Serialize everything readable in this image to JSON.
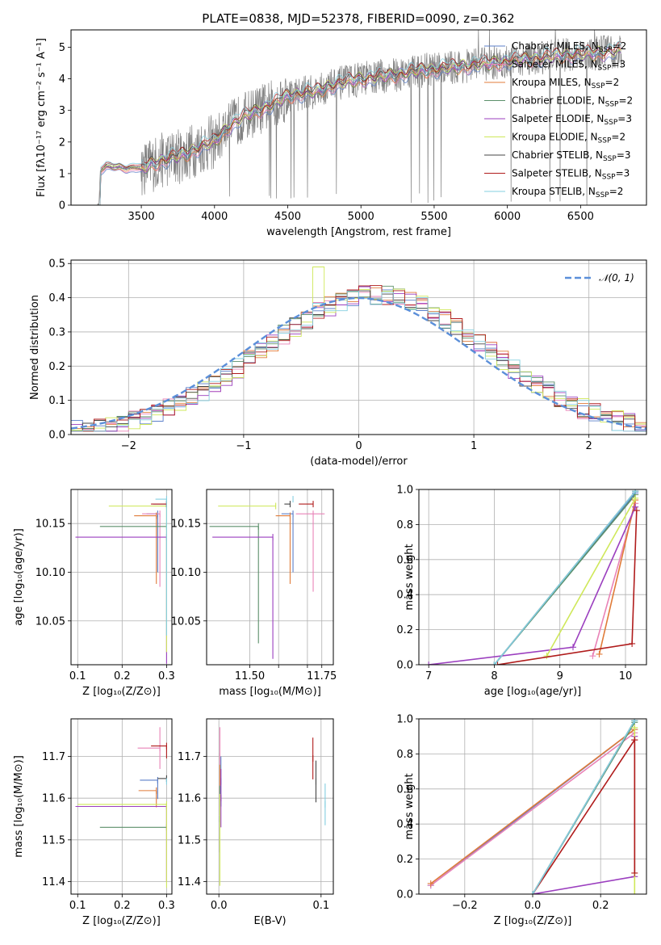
{
  "colors": {
    "chabrier_miles": "#5b7fc9",
    "salpeter_miles": "#e983b7",
    "kroupa_miles": "#e07b39",
    "chabrier_elodie": "#5b8f6a",
    "salpeter_elodie": "#9b3fbf",
    "kroupa_elodie": "#cfe85a",
    "chabrier_stelib": "#444444",
    "salpeter_stelib": "#b01c1c",
    "kroupa_stelib": "#83cfe0",
    "data": "#808080",
    "normal": "#5b8fd9",
    "grid": "#b0b0b0"
  },
  "legend_models": [
    {
      "key": "chabrier_miles",
      "label": "Chabrier MILES, N",
      "sub": "SSP",
      "n": "=2"
    },
    {
      "key": "salpeter_miles",
      "label": "Salpeter MILES, N",
      "sub": "SSP",
      "n": "=3"
    },
    {
      "key": "kroupa_miles",
      "label": "Kroupa MILES, N",
      "sub": "SSP",
      "n": "=2"
    },
    {
      "key": "chabrier_elodie",
      "label": "Chabrier ELODIE, N",
      "sub": "SSP",
      "n": "=2"
    },
    {
      "key": "salpeter_elodie",
      "label": "Salpeter ELODIE, N",
      "sub": "SSP",
      "n": "=3"
    },
    {
      "key": "kroupa_elodie",
      "label": "Kroupa ELODIE, N",
      "sub": "SSP",
      "n": "=2"
    },
    {
      "key": "chabrier_stelib",
      "label": "Chabrier STELIB, N",
      "sub": "SSP",
      "n": "=3"
    },
    {
      "key": "salpeter_stelib",
      "label": "Salpeter STELIB, N",
      "sub": "SSP",
      "n": "=3"
    },
    {
      "key": "kroupa_stelib",
      "label": "Kroupa STELIB, N",
      "sub": "SSP",
      "n": "=2"
    }
  ],
  "chart_data": [
    {
      "id": "spectrum",
      "type": "line",
      "title": "PLATE=0838, MJD=52378, FIBERID=0090, z=0.362",
      "xlabel": "wavelength [Angstrom, rest frame]",
      "ylabel": "Flux [fλ10⁻¹⁷ erg cm⁻² s⁻¹ A⁻¹]",
      "xlim": [
        3020,
        6950
      ],
      "ylim": [
        0,
        5.55
      ],
      "xticks": [
        3500,
        4000,
        4500,
        5000,
        5500,
        6000,
        6500
      ],
      "yticks": [
        0,
        1,
        2,
        3,
        4,
        5
      ],
      "continuum": {
        "x": [
          3200,
          3210,
          3220,
          3260,
          3300,
          3350,
          3400,
          3450,
          3500,
          3600,
          3700,
          3800,
          3900,
          4000,
          4100,
          4200,
          4300,
          4400,
          4500,
          4600,
          4700,
          4800,
          4900,
          5000,
          5200,
          5400,
          5600,
          5800,
          6000,
          6200,
          6400,
          6600,
          6780
        ],
        "y": [
          0,
          0,
          1.05,
          1.25,
          1.2,
          1.22,
          1.15,
          1.2,
          1.15,
          1.35,
          1.5,
          1.6,
          1.85,
          2.0,
          2.5,
          2.8,
          3.0,
          3.2,
          3.45,
          3.55,
          3.6,
          3.8,
          3.9,
          4.0,
          4.1,
          4.25,
          4.35,
          4.45,
          4.55,
          4.65,
          4.75,
          4.8,
          4.9
        ]
      }
    },
    {
      "id": "residuals",
      "type": "bar",
      "xlabel": "(data-model)/error",
      "ylabel": "Normed distribution",
      "xlim": [
        -2.5,
        2.5
      ],
      "ylim": [
        0,
        0.51
      ],
      "xticks": [
        -2,
        -1,
        0,
        1,
        2
      ],
      "yticks": [
        0.0,
        0.1,
        0.2,
        0.3,
        0.4,
        0.5
      ],
      "legend": "𝒩(0, 1)",
      "bin_width": 0.1,
      "bin_start": -2.5
    },
    {
      "id": "age_vs_Z",
      "type": "scatter",
      "xlabel": "Z [log₁₀(Z/Z⊙)]",
      "ylabel": "age  [log₁₀(age/yr)]",
      "xlim": [
        0.085,
        0.312
      ],
      "ylim": [
        10.005,
        10.185
      ],
      "xticks": [
        0.1,
        0.2,
        0.3
      ],
      "yticks": [
        10.05,
        10.1,
        10.15
      ],
      "points": [
        {
          "key": "chabrier_miles",
          "x": 0.28,
          "y": 10.16,
          "xerr": [
            0.025,
            0.0
          ],
          "yerr": [
            0.06,
            0.0
          ]
        },
        {
          "key": "salpeter_miles",
          "x": 0.285,
          "y": 10.16,
          "xerr": [
            0.04,
            0.0
          ],
          "yerr": [
            0.075,
            0.0
          ]
        },
        {
          "key": "kroupa_miles",
          "x": 0.277,
          "y": 10.158,
          "xerr": [
            0.05,
            0.0
          ],
          "yerr": [
            0.07,
            0.0
          ]
        },
        {
          "key": "chabrier_elodie",
          "x": 0.3,
          "y": 10.147,
          "xerr": [
            0.15,
            0.0
          ],
          "yerr": [
            0.0,
            0.0
          ]
        },
        {
          "key": "salpeter_elodie",
          "x": 0.3,
          "y": 10.136,
          "xerr": [
            0.205,
            0.0
          ],
          "yerr": [
            0.13,
            0.0
          ]
        },
        {
          "key": "kroupa_elodie",
          "x": 0.3,
          "y": 10.168,
          "xerr": [
            0.13,
            0.0
          ],
          "yerr": [
            0.15,
            0.0
          ]
        },
        {
          "key": "chabrier_stelib",
          "x": 0.3,
          "y": 10.17,
          "xerr": [
            0.03,
            0.0
          ],
          "yerr": [
            0.0,
            0.0
          ]
        },
        {
          "key": "salpeter_stelib",
          "x": 0.3,
          "y": 10.17,
          "xerr": [
            0.035,
            0.0
          ],
          "yerr": [
            0.0,
            0.0
          ]
        },
        {
          "key": "kroupa_stelib",
          "x": 0.3,
          "y": 10.175,
          "xerr": [
            0.025,
            0.0
          ],
          "yerr": [
            0.14,
            0.0
          ]
        }
      ]
    },
    {
      "id": "age_vs_mass",
      "type": "scatter",
      "xlabel": "mass [log₁₀(M/M⊙)]",
      "xlim": [
        11.35,
        11.79
      ],
      "ylim": [
        10.005,
        10.185
      ],
      "xticks": [
        11.5,
        11.6,
        11.7,
        11.75
      ],
      "xtick_labels": [
        "11.50",
        "11.75"
      ],
      "yticks": [
        10.05,
        10.1,
        10.15
      ],
      "points": [
        {
          "key": "chabrier_miles",
          "x": 11.65,
          "y": 10.16,
          "xerr": [
            0.04,
            0.0
          ],
          "yerr": [
            0.06,
            0.0
          ]
        },
        {
          "key": "salpeter_miles",
          "x": 11.72,
          "y": 10.16,
          "xerr": [
            0.06,
            0.04
          ],
          "yerr": [
            0.08,
            0.0
          ]
        },
        {
          "key": "kroupa_miles",
          "x": 11.64,
          "y": 10.158,
          "xerr": [
            0.05,
            0.0
          ],
          "yerr": [
            0.07,
            0.0
          ]
        },
        {
          "key": "chabrier_elodie",
          "x": 11.53,
          "y": 10.147,
          "xerr": [
            0.17,
            0.0
          ],
          "yerr": [
            0.12,
            0.0
          ]
        },
        {
          "key": "salpeter_elodie",
          "x": 11.58,
          "y": 10.136,
          "xerr": [
            0.21,
            0.0
          ],
          "yerr": [
            0.125,
            0.0
          ]
        },
        {
          "key": "kroupa_elodie",
          "x": 11.59,
          "y": 10.168,
          "xerr": [
            0.2,
            0.0
          ],
          "yerr": [
            0.0,
            0.0
          ]
        },
        {
          "key": "chabrier_stelib",
          "x": 11.64,
          "y": 10.17,
          "xerr": [
            0.02,
            0.0
          ],
          "yerr": [
            0.0,
            0.0
          ]
        },
        {
          "key": "salpeter_stelib",
          "x": 11.72,
          "y": 10.17,
          "xerr": [
            0.05,
            0.0
          ],
          "yerr": [
            0.0,
            0.0
          ]
        },
        {
          "key": "kroupa_stelib",
          "x": 11.65,
          "y": 10.175,
          "xerr": [
            0.0,
            0.0
          ],
          "yerr": [
            0.0,
            0.0
          ]
        }
      ]
    },
    {
      "id": "mass_weight_vs_age",
      "type": "line",
      "xlabel": "age  [log₁₀(age/yr)]",
      "ylabel": "mass weight",
      "xlim": [
        6.85,
        10.32
      ],
      "ylim": [
        0,
        1.0
      ],
      "xticks": [
        7,
        8,
        9,
        10
      ],
      "yticks": [
        0.0,
        0.2,
        0.4,
        0.6,
        0.8,
        1.0
      ],
      "series": [
        {
          "key": "chabrier_miles",
          "x": [
            8.0,
            10.15
          ],
          "y": [
            0.0,
            0.98
          ]
        },
        {
          "key": "salpeter_miles",
          "x": [
            9.5,
            10.15
          ],
          "y": [
            0.05,
            0.92
          ]
        },
        {
          "key": "kroupa_miles",
          "x": [
            9.6,
            10.15
          ],
          "y": [
            0.06,
            0.94
          ]
        },
        {
          "key": "chabrier_elodie",
          "x": [
            8.0,
            10.15
          ],
          "y": [
            0.0,
            0.97
          ]
        },
        {
          "key": "salpeter_elodie",
          "x": [
            7.0,
            9.2,
            10.15
          ],
          "y": [
            0.0,
            0.1,
            0.9
          ]
        },
        {
          "key": "kroupa_elodie",
          "x": [
            8.8,
            10.15
          ],
          "y": [
            0.05,
            0.95
          ]
        },
        {
          "key": "chabrier_stelib",
          "x": [
            8.0,
            10.15
          ],
          "y": [
            0.0,
            0.99
          ]
        },
        {
          "key": "salpeter_stelib",
          "x": [
            8.05,
            10.1,
            10.17
          ],
          "y": [
            0.0,
            0.12,
            0.88
          ]
        },
        {
          "key": "kroupa_stelib",
          "x": [
            8.0,
            10.15
          ],
          "y": [
            0.0,
            0.99
          ]
        }
      ]
    },
    {
      "id": "mass_vs_Z",
      "type": "scatter",
      "xlabel": "Z [log₁₀(Z/Z⊙)]",
      "ylabel": "mass [log₁₀(M/M⊙)]",
      "xlim": [
        0.085,
        0.312
      ],
      "ylim": [
        11.37,
        11.79
      ],
      "xticks": [
        0.1,
        0.2,
        0.3
      ],
      "yticks": [
        11.4,
        11.5,
        11.6,
        11.7
      ],
      "points": [
        {
          "key": "chabrier_miles",
          "x": 0.28,
          "y": 11.643,
          "xerr": [
            0.04,
            0.0
          ],
          "yerr": [
            0.045,
            0.0
          ]
        },
        {
          "key": "salpeter_miles",
          "x": 0.285,
          "y": 11.72,
          "xerr": [
            0.05,
            0.0
          ],
          "yerr": [
            0.05,
            0.05
          ]
        },
        {
          "key": "kroupa_miles",
          "x": 0.277,
          "y": 11.618,
          "xerr": [
            0.04,
            0.0
          ],
          "yerr": [
            0.04,
            0.0
          ]
        },
        {
          "key": "chabrier_elodie",
          "x": 0.3,
          "y": 11.53,
          "xerr": [
            0.15,
            0.0
          ],
          "yerr": [
            0.0,
            0.0
          ]
        },
        {
          "key": "salpeter_elodie",
          "x": 0.3,
          "y": 11.58,
          "xerr": [
            0.205,
            0.0
          ],
          "yerr": [
            0.18,
            0.0
          ]
        },
        {
          "key": "kroupa_elodie",
          "x": 0.3,
          "y": 11.585,
          "xerr": [
            0.2,
            0.0
          ],
          "yerr": [
            0.2,
            0.0
          ]
        },
        {
          "key": "chabrier_stelib",
          "x": 0.3,
          "y": 11.647,
          "xerr": [
            0.02,
            0.0
          ],
          "yerr": [
            0.0,
            0.0
          ]
        },
        {
          "key": "salpeter_stelib",
          "x": 0.3,
          "y": 11.725,
          "xerr": [
            0.035,
            0.0
          ],
          "yerr": [
            0.03,
            0.0
          ]
        },
        {
          "key": "kroupa_stelib",
          "x": 0.3,
          "y": 11.64,
          "xerr": [
            0.0,
            0.0
          ],
          "yerr": [
            0.0,
            0.0
          ]
        }
      ]
    },
    {
      "id": "mass_vs_EBV",
      "type": "scatter",
      "xlabel": "E(B-V)",
      "xlim": [
        -0.012,
        0.112
      ],
      "ylim": [
        11.37,
        11.79
      ],
      "xticks": [
        0.0,
        0.1
      ],
      "yticks": [
        11.4,
        11.5,
        11.6,
        11.7
      ],
      "points": [
        {
          "key": "chabrier_miles",
          "x": 0.002,
          "y": 11.64,
          "xerr": [
            0,
            0
          ],
          "yerr": [
            0.06,
            0.06
          ]
        },
        {
          "key": "salpeter_miles",
          "x": 0.001,
          "y": 11.7,
          "xerr": [
            0,
            0
          ],
          "yerr": [
            0.07,
            0.07
          ]
        },
        {
          "key": "kroupa_miles",
          "x": 0.001,
          "y": 11.62,
          "xerr": [
            0,
            0
          ],
          "yerr": [
            0.06,
            0.06
          ]
        },
        {
          "key": "chabrier_elodie",
          "x": 0.001,
          "y": 11.55,
          "xerr": [
            0,
            0
          ],
          "yerr": [
            0.08,
            0.08
          ]
        },
        {
          "key": "salpeter_elodie",
          "x": 0.002,
          "y": 11.6,
          "xerr": [
            0,
            0
          ],
          "yerr": [
            0.07,
            0.07
          ]
        },
        {
          "key": "kroupa_elodie",
          "x": 0.001,
          "y": 11.5,
          "xerr": [
            0,
            0
          ],
          "yerr": [
            0.11,
            0.11
          ]
        },
        {
          "key": "chabrier_stelib",
          "x": 0.095,
          "y": 11.64,
          "xerr": [
            0,
            0
          ],
          "yerr": [
            0.05,
            0.05
          ]
        },
        {
          "key": "salpeter_stelib",
          "x": 0.092,
          "y": 11.695,
          "xerr": [
            0,
            0
          ],
          "yerr": [
            0.05,
            0.05
          ]
        },
        {
          "key": "kroupa_stelib",
          "x": 0.104,
          "y": 11.585,
          "xerr": [
            0,
            0
          ],
          "yerr": [
            0.05,
            0.05
          ]
        }
      ]
    },
    {
      "id": "mass_weight_vs_Z",
      "type": "line",
      "xlabel": "Z [log₁₀(Z/Z⊙)]",
      "ylabel": "mass weight",
      "xlim": [
        -0.335,
        0.335
      ],
      "ylim": [
        0,
        1.0
      ],
      "xticks": [
        -0.2,
        0.0,
        0.2
      ],
      "yticks": [
        0.0,
        0.2,
        0.4,
        0.6,
        0.8,
        1.0
      ],
      "series": [
        {
          "key": "chabrier_miles",
          "x": [
            -0.3,
            0.3
          ],
          "y": [
            0.05,
            0.94
          ]
        },
        {
          "key": "salpeter_miles",
          "x": [
            -0.3,
            0.3
          ],
          "y": [
            0.05,
            0.92
          ]
        },
        {
          "key": "kroupa_miles",
          "x": [
            -0.3,
            0.3
          ],
          "y": [
            0.06,
            0.94
          ]
        },
        {
          "key": "chabrier_elodie",
          "x": [
            0.0,
            0.3
          ],
          "y": [
            0.0,
            0.98
          ]
        },
        {
          "key": "salpeter_elodie",
          "x": [
            0.0,
            0.3,
            0.3
          ],
          "y": [
            0.0,
            0.1,
            0.9
          ]
        },
        {
          "key": "kroupa_elodie",
          "x": [
            0.3,
            0.3
          ],
          "y": [
            0.0,
            0.95
          ]
        },
        {
          "key": "chabrier_stelib",
          "x": [
            0.0,
            0.3
          ],
          "y": [
            0.0,
            0.99
          ]
        },
        {
          "key": "salpeter_stelib",
          "x": [
            0.0,
            0.3,
            0.3,
            0.3
          ],
          "y": [
            0.0,
            0.88,
            0.12,
            0.88
          ]
        },
        {
          "key": "kroupa_stelib",
          "x": [
            0.0,
            0.3
          ],
          "y": [
            0.0,
            0.99
          ]
        }
      ]
    }
  ]
}
